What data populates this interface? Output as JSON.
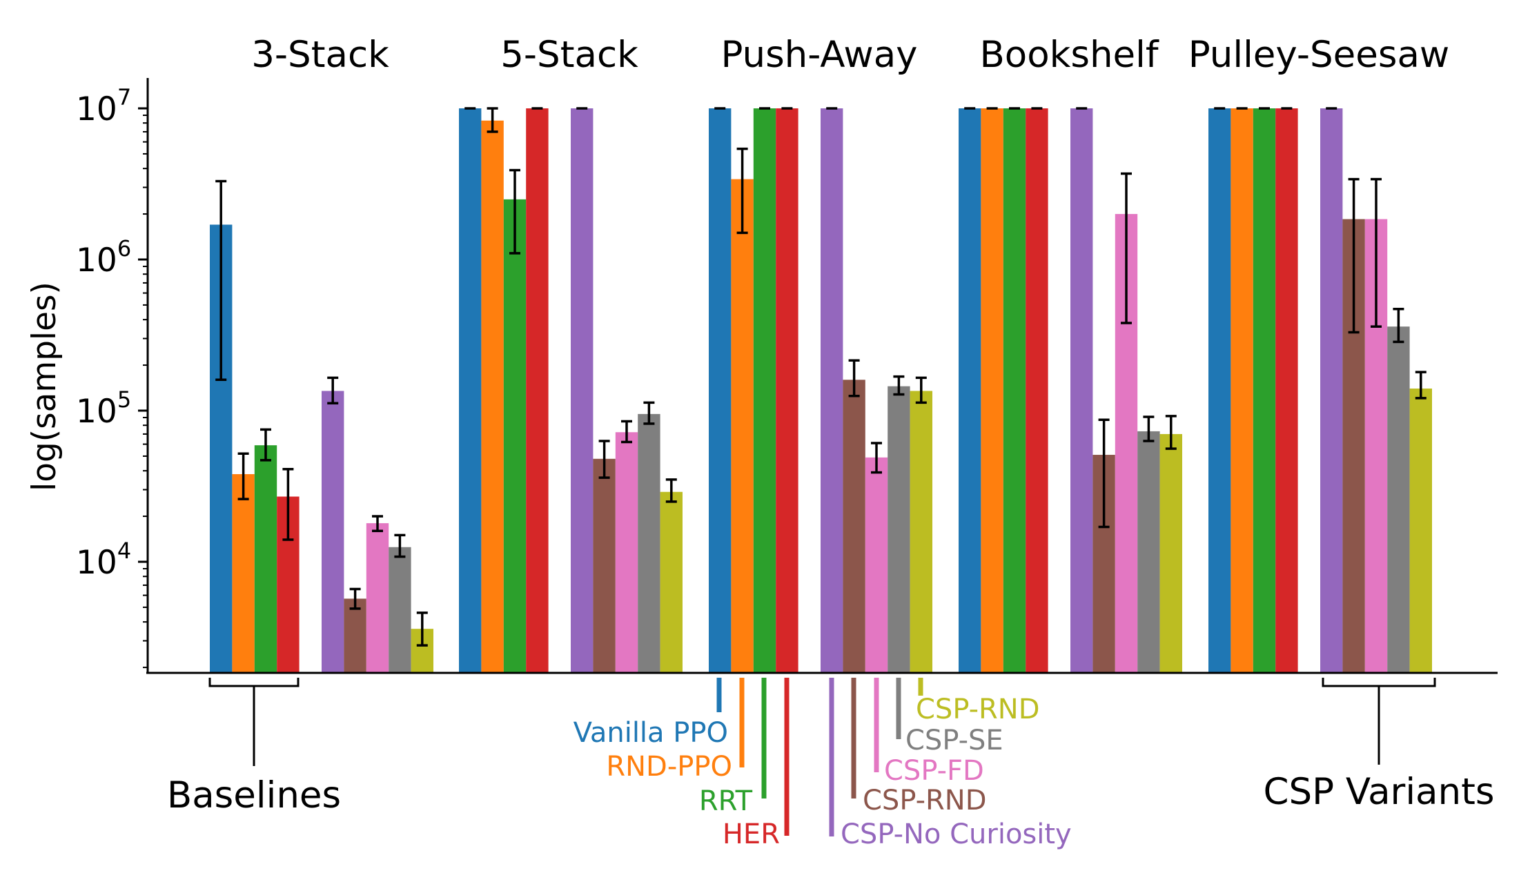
{
  "chart_data": {
    "type": "bar",
    "ylabel": "log(samples)",
    "yscale": "log",
    "ylim": [
      2000,
      15000000
    ],
    "yticks": [
      {
        "value": 10000,
        "base": "10",
        "exp": "4"
      },
      {
        "value": 100000,
        "base": "10",
        "exp": "5"
      },
      {
        "value": 1000000,
        "base": "10",
        "exp": "6"
      },
      {
        "value": 10000000,
        "base": "10",
        "exp": "7"
      }
    ],
    "groups": [
      "3-Stack",
      "5-Stack",
      "Push-Away",
      "Bookshelf",
      "Pulley-Seesaw"
    ],
    "series": [
      {
        "name": "Vanilla PPO",
        "color": "#1f77b4",
        "set": "baseline",
        "values": [
          1700000,
          10000000,
          10000000,
          10000000,
          10000000
        ],
        "err_low": [
          160000,
          null,
          null,
          null,
          null
        ],
        "err_high": [
          3300000,
          null,
          null,
          null,
          null
        ]
      },
      {
        "name": "RND-PPO",
        "color": "#ff7f0e",
        "set": "baseline",
        "values": [
          38000,
          8300000,
          3400000,
          10000000,
          10000000
        ],
        "err_low": [
          26000,
          7000000,
          1500000,
          null,
          null
        ],
        "err_high": [
          52000,
          10000000,
          5400000,
          null,
          null
        ]
      },
      {
        "name": "RRT",
        "color": "#2ca02c",
        "set": "baseline",
        "values": [
          59000,
          2500000,
          10000000,
          10000000,
          10000000
        ],
        "err_low": [
          47000,
          1100000,
          null,
          null,
          null
        ],
        "err_high": [
          75000,
          3900000,
          null,
          null,
          null
        ]
      },
      {
        "name": "HER",
        "color": "#d62728",
        "set": "baseline",
        "values": [
          27000,
          10000000,
          10000000,
          10000000,
          10000000
        ],
        "err_low": [
          14000,
          null,
          null,
          null,
          null
        ],
        "err_high": [
          41000,
          null,
          null,
          null,
          null
        ]
      },
      {
        "name": "CSP-No Curiosity",
        "color": "#9467bd",
        "set": "csp",
        "values": [
          135000,
          10000000,
          10000000,
          10000000,
          10000000
        ],
        "err_low": [
          112000,
          null,
          null,
          null,
          null
        ],
        "err_high": [
          165000,
          null,
          null,
          null,
          null
        ]
      },
      {
        "name": "CSP-RND",
        "color": "#8c564b",
        "set": "csp",
        "values": [
          5700,
          48000,
          160000,
          51000,
          1850000
        ],
        "err_low": [
          4900,
          36000,
          125000,
          17000,
          330000
        ],
        "err_high": [
          6600,
          63000,
          215000,
          87000,
          3400000
        ]
      },
      {
        "name": "CSP-FD",
        "color": "#e377c2",
        "set": "csp",
        "values": [
          18000,
          72000,
          49000,
          2000000,
          1850000
        ],
        "err_low": [
          16000,
          62000,
          39000,
          380000,
          360000
        ],
        "err_high": [
          20000,
          85000,
          61000,
          3700000,
          3400000
        ]
      },
      {
        "name": "CSP-SE",
        "color": "#7f7f7f",
        "set": "csp",
        "values": [
          12500,
          95000,
          145000,
          73000,
          360000
        ],
        "err_low": [
          10800,
          82000,
          128000,
          63000,
          285000
        ],
        "err_high": [
          15000,
          113000,
          168000,
          91000,
          470000
        ]
      },
      {
        "name": "CSP-RND",
        "color": "#bcbd22",
        "set": "csp",
        "values": [
          3600,
          29000,
          135000,
          70000,
          140000
        ],
        "err_low": [
          2800,
          25000,
          113000,
          56000,
          121000
        ],
        "err_high": [
          4600,
          35000,
          165000,
          92000,
          180000
        ]
      }
    ],
    "annotations": {
      "baselines": "Baselines",
      "csp_variants": "CSP Variants"
    }
  }
}
